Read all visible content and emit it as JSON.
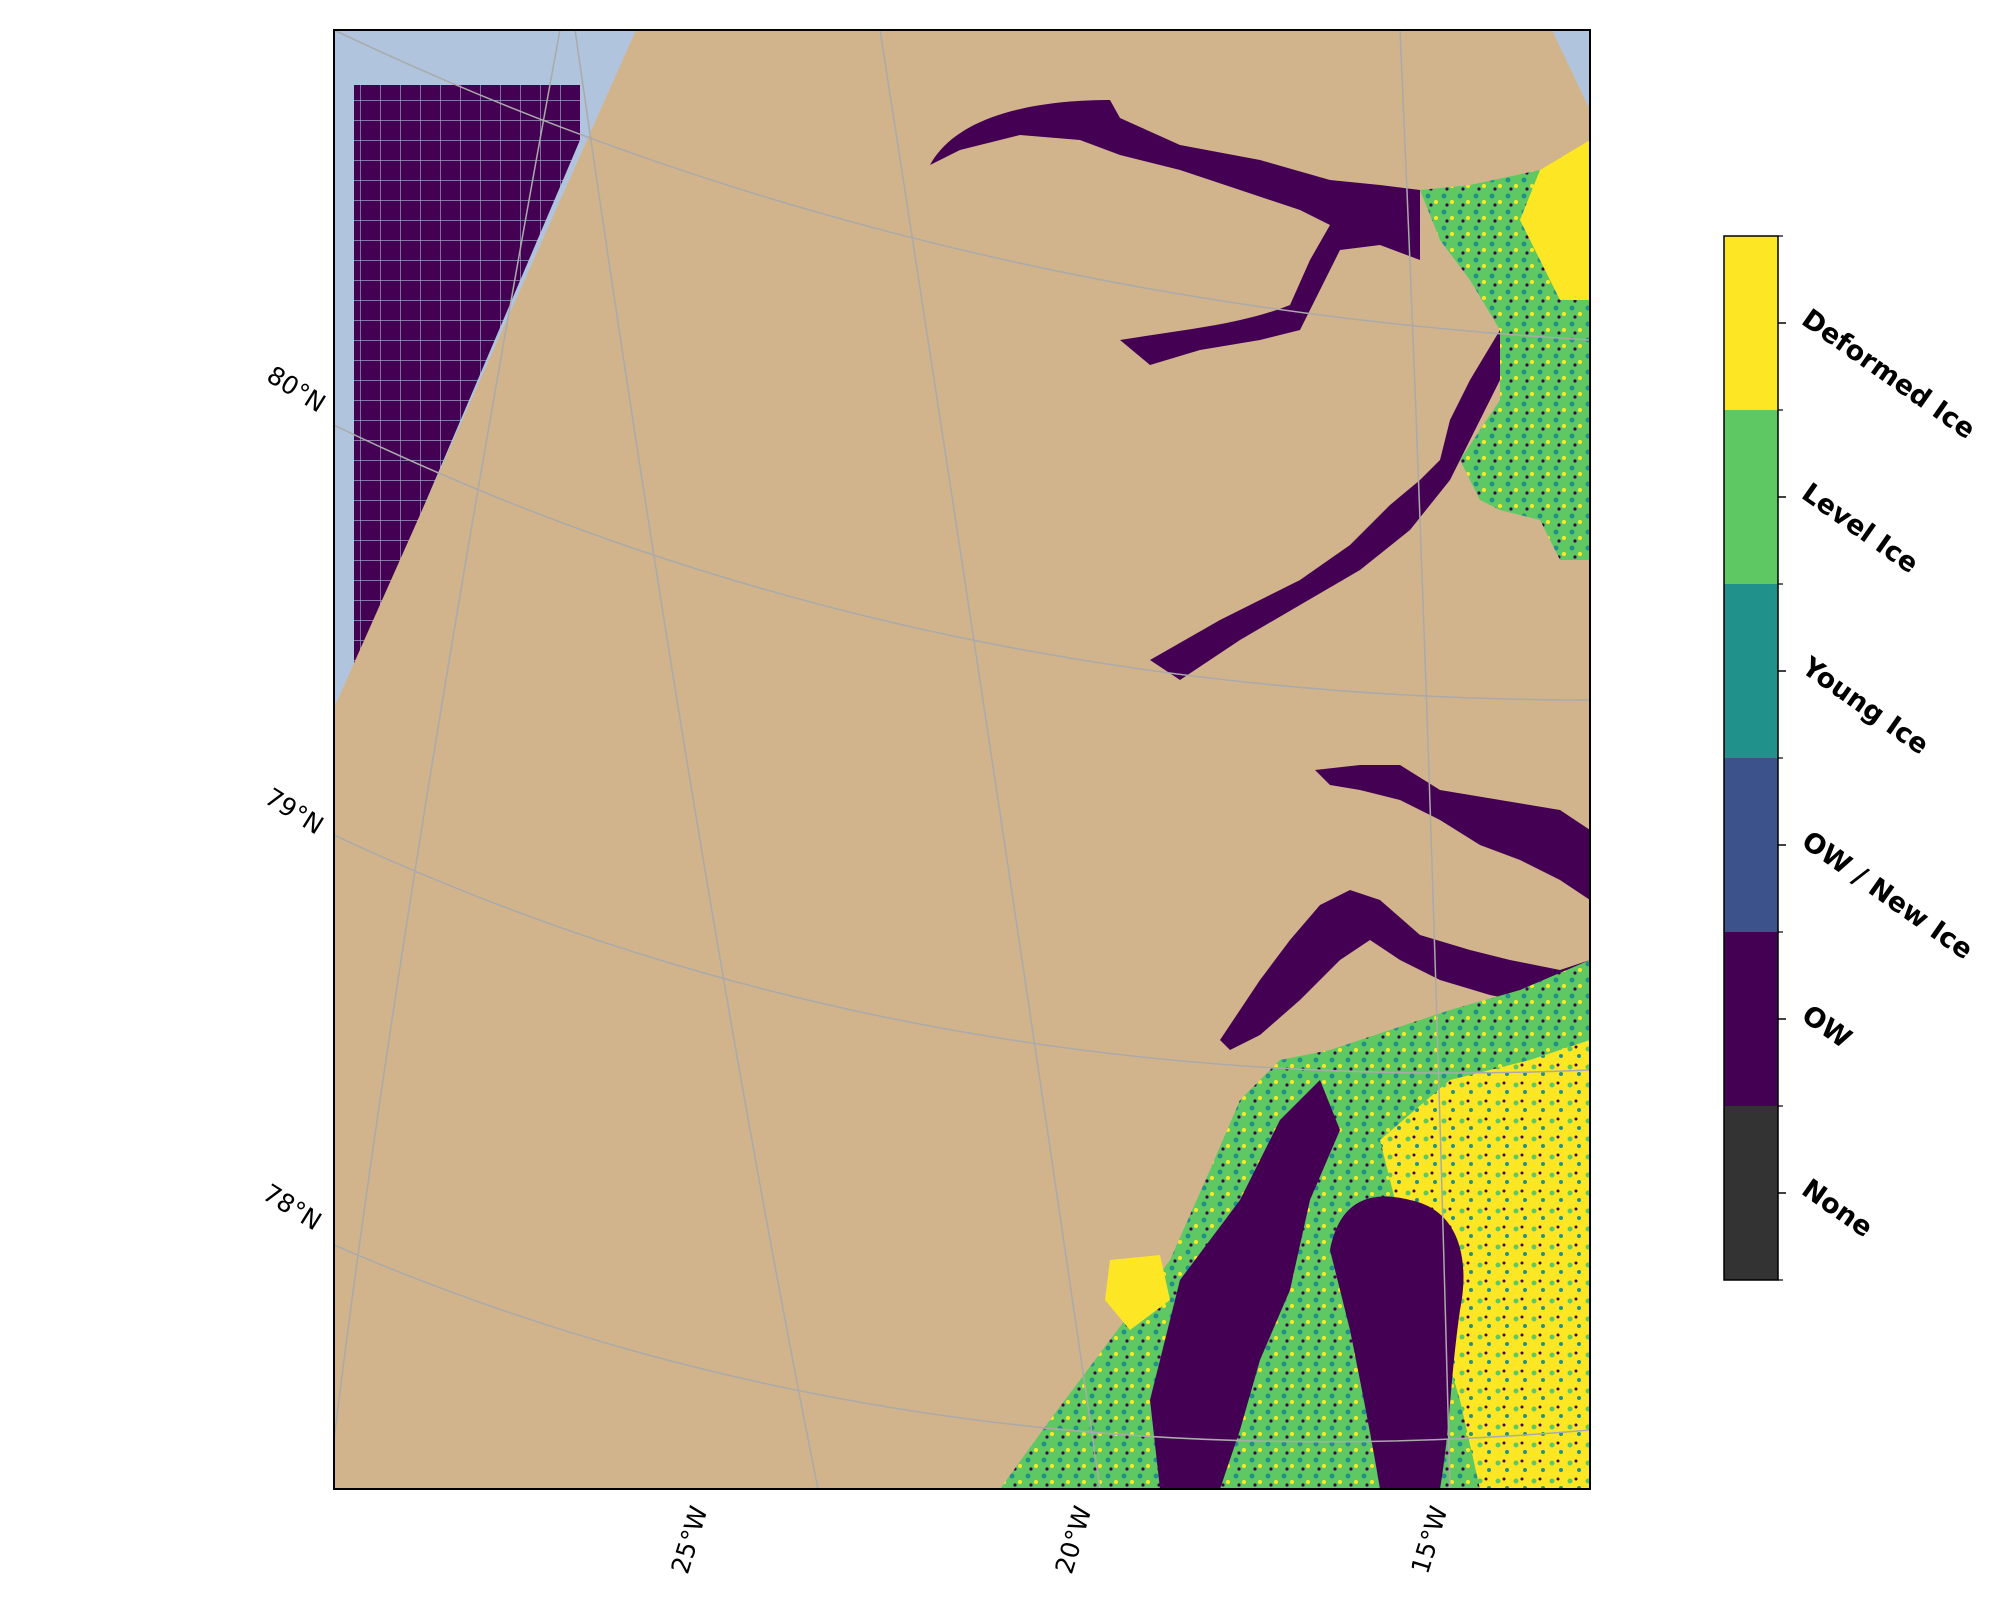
{
  "map": {
    "latitude_labels": [
      "80°N",
      "79°N",
      "78°N"
    ],
    "longitude_labels": [
      "25°W",
      "20°W",
      "15°W"
    ],
    "colors": {
      "ocean": "#b0c4de",
      "land": "#d2b48c",
      "gridline": "#aaaaaa",
      "frame": "#000000"
    }
  },
  "legend": {
    "title": "",
    "classes": [
      {
        "label": "Deformed Ice",
        "color": "#fde725"
      },
      {
        "label": "Level Ice",
        "color": "#5ec962"
      },
      {
        "label": "Young Ice",
        "color": "#21918c"
      },
      {
        "label": "OW / New Ice",
        "color": "#3b528b"
      },
      {
        "label": "OW",
        "color": "#440154"
      },
      {
        "label": "None",
        "color": "#333333"
      }
    ]
  }
}
